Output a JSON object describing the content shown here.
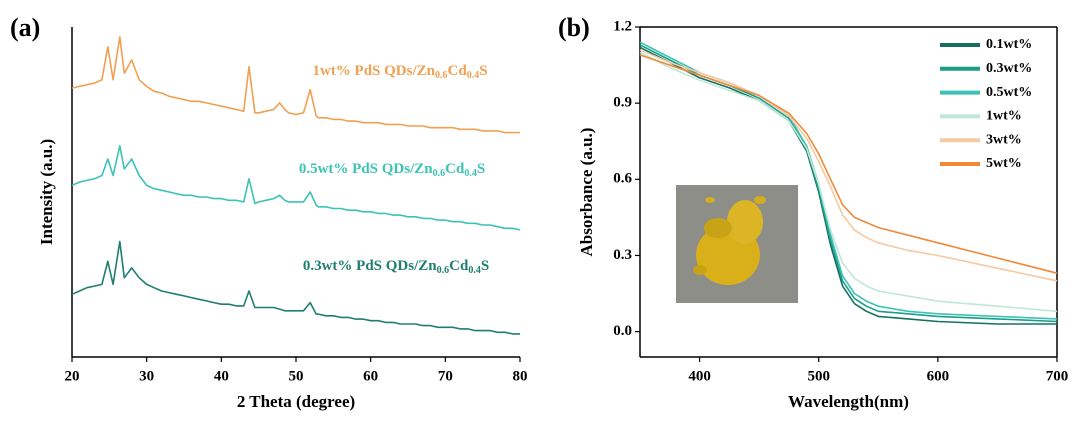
{
  "chart_data": [
    {
      "type": "line",
      "panel_label": "(a)",
      "x_label": "2 Theta (degree)",
      "y_label": "Intensity (a.u.)",
      "xlim": [
        20,
        80
      ],
      "xticks": [
        20,
        30,
        40,
        50,
        60,
        70,
        80
      ],
      "ylim": [
        0,
        100
      ],
      "x": [
        20,
        21,
        22,
        23,
        24,
        24.8,
        25.5,
        26.4,
        27,
        28,
        29,
        30,
        31,
        32,
        33,
        34,
        35,
        36,
        37,
        38,
        39,
        40,
        41,
        42,
        43,
        43.7,
        44.5,
        45,
        46,
        47,
        47.8,
        48.5,
        49,
        50,
        51,
        51.9,
        52.7,
        53,
        54,
        55,
        56,
        57,
        58,
        59,
        60,
        61,
        62,
        63,
        64,
        65,
        66,
        67,
        68,
        69,
        70,
        71,
        72,
        73,
        74,
        75,
        76,
        77,
        78,
        79,
        80
      ],
      "series": [
        {
          "annotation": [
            "1wt% PdS QDs/Zn",
            "0.6",
            "Cd",
            "0.4",
            "S"
          ],
          "color": "#f0a050",
          "values": [
            81.5,
            82,
            82.5,
            83,
            84,
            94,
            84,
            97,
            86,
            90,
            84,
            82,
            80.5,
            80,
            79,
            78.5,
            78,
            77.5,
            77.5,
            77,
            76.5,
            76,
            75.5,
            75,
            74.5,
            88,
            74,
            74,
            74.5,
            75,
            77,
            75,
            74,
            73.5,
            74,
            81,
            73,
            72.5,
            72.5,
            72,
            72,
            71.5,
            71.5,
            71,
            71,
            71,
            70.5,
            70.5,
            70.5,
            70,
            70,
            70,
            69.5,
            69.5,
            69.5,
            69.5,
            69,
            69,
            69,
            68.5,
            68.5,
            68.5,
            68,
            68,
            68
          ]
        },
        {
          "annotation": [
            "0.5wt% PdS QDs/Zn",
            "0.6",
            "Cd",
            "0.4",
            "S"
          ],
          "color": "#3cc3b5",
          "values": [
            52,
            53,
            53.5,
            54,
            55,
            60,
            55,
            64,
            57,
            60,
            55,
            52,
            51,
            50.5,
            50,
            49.5,
            49,
            49,
            48.5,
            48.5,
            48,
            48,
            47.5,
            47.5,
            47,
            54,
            46.5,
            47,
            47.5,
            48,
            49,
            47.5,
            47,
            47,
            47,
            50,
            46,
            45.5,
            45.5,
            45,
            45,
            44.5,
            44.5,
            44,
            44,
            43.5,
            43.5,
            43,
            43,
            42.5,
            42.5,
            42,
            42,
            41.5,
            41.5,
            41,
            41,
            40.5,
            40.5,
            40,
            40,
            39.5,
            39,
            39,
            38.5
          ]
        },
        {
          "annotation": [
            "0.3wt% PdS QDs/Zn",
            "0.6",
            "Cd",
            "0.4",
            "S"
          ],
          "color": "#1e7f6f",
          "values": [
            19,
            20,
            21,
            21.5,
            22,
            29,
            22,
            35,
            24,
            27,
            24,
            22,
            21,
            20,
            19.5,
            19,
            18.5,
            18,
            17.5,
            17,
            16.5,
            16,
            16,
            15.5,
            15.5,
            20,
            15,
            15,
            15,
            15,
            14.5,
            14,
            14,
            14,
            14,
            16.5,
            13,
            13,
            12.5,
            12.5,
            12,
            12,
            11.5,
            11.5,
            11,
            11,
            10.5,
            10.5,
            10,
            10,
            10,
            9.5,
            9.5,
            9,
            9,
            9,
            8.5,
            8.5,
            8,
            8,
            8,
            7.5,
            7.5,
            7,
            7
          ]
        }
      ]
    },
    {
      "type": "line",
      "panel_label": "(b)",
      "x_label": "Wavelength(nm)",
      "y_label": "Absorbance (a.u.)",
      "xlim": [
        350,
        700
      ],
      "xticks": [
        400,
        500,
        600,
        700
      ],
      "ylim": [
        -0.1,
        1.2
      ],
      "yticks": [
        {
          "value": 0,
          "label": "0.0"
        },
        0.3,
        0.6,
        0.9,
        1.2
      ],
      "legend": "upper right",
      "x": [
        350,
        375,
        400,
        425,
        450,
        475,
        490,
        500,
        510,
        520,
        530,
        540,
        550,
        575,
        600,
        650,
        700
      ],
      "series": [
        {
          "name": "0.1wt%",
          "color": "#17705f",
          "values": [
            1.12,
            1.06,
            1.0,
            0.96,
            0.91,
            0.83,
            0.71,
            0.55,
            0.34,
            0.18,
            0.11,
            0.08,
            0.06,
            0.05,
            0.04,
            0.03,
            0.03
          ]
        },
        {
          "name": "0.3wt%",
          "color": "#1a9e8a",
          "values": [
            1.13,
            1.07,
            1.01,
            0.97,
            0.92,
            0.84,
            0.72,
            0.56,
            0.36,
            0.2,
            0.13,
            0.1,
            0.08,
            0.07,
            0.06,
            0.05,
            0.04
          ]
        },
        {
          "name": "0.5wt%",
          "color": "#3cc3b5",
          "values": [
            1.14,
            1.08,
            1.02,
            0.98,
            0.93,
            0.85,
            0.73,
            0.58,
            0.38,
            0.22,
            0.15,
            0.12,
            0.1,
            0.08,
            0.07,
            0.06,
            0.05
          ]
        },
        {
          "name": "1wt%",
          "color": "#bfe8d8",
          "values": [
            1.1,
            1.04,
            0.99,
            0.95,
            0.91,
            0.83,
            0.72,
            0.58,
            0.4,
            0.27,
            0.21,
            0.18,
            0.16,
            0.14,
            0.12,
            0.1,
            0.08
          ]
        },
        {
          "name": "3wt%",
          "color": "#f7c9a0",
          "values": [
            1.11,
            1.06,
            1.02,
            0.98,
            0.93,
            0.85,
            0.76,
            0.67,
            0.57,
            0.46,
            0.4,
            0.37,
            0.35,
            0.32,
            0.3,
            0.25,
            0.2
          ]
        },
        {
          "name": "5wt%",
          "color": "#f08a3a",
          "values": [
            1.09,
            1.05,
            1.01,
            0.97,
            0.93,
            0.86,
            0.78,
            0.7,
            0.6,
            0.5,
            0.45,
            0.43,
            0.41,
            0.38,
            0.35,
            0.29,
            0.23
          ]
        }
      ]
    }
  ]
}
